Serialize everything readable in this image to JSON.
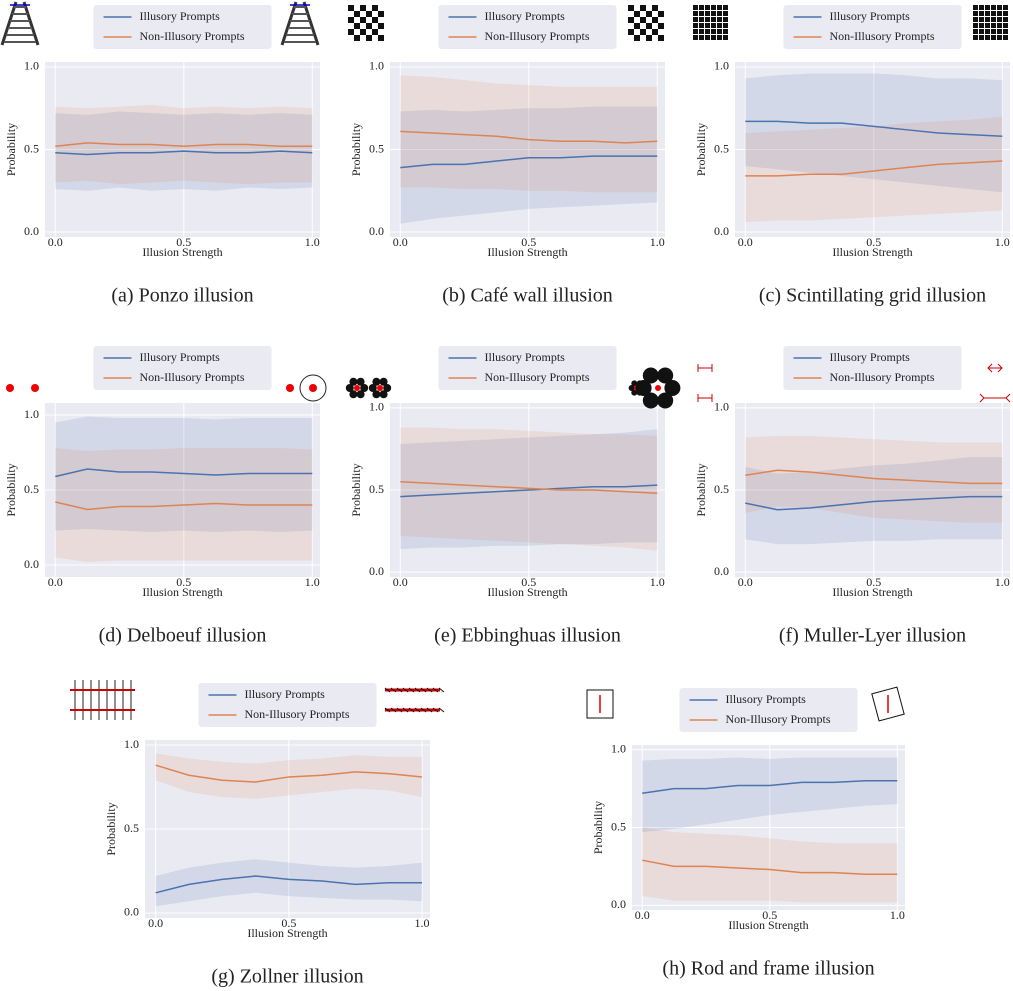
{
  "chart_data": [
    {
      "type": "line",
      "caption": "(a) Ponzo illusion",
      "xlabel": "Illusion Strength",
      "ylabel": "Probability",
      "x": [
        0,
        0.125,
        0.25,
        0.375,
        0.5,
        0.625,
        0.75,
        0.875,
        1.0
      ],
      "xlim": [
        -0.04,
        1.03
      ],
      "ylim": [
        -0.03,
        1.03
      ],
      "xticks": [
        {
          "value": 0,
          "label": "0.0"
        },
        {
          "value": 0.5,
          "label": "0.5"
        },
        {
          "value": 1.0,
          "label": "1.0"
        }
      ],
      "yticks": [
        {
          "value": 0,
          "label": "0.0"
        },
        {
          "value": 0.5,
          "label": "0.5"
        },
        {
          "value": 1.0,
          "label": "1.0"
        }
      ],
      "grid": true,
      "series": [
        {
          "name": "Illusory Prompts",
          "color": "#4c72b0",
          "values": [
            0.48,
            0.47,
            0.48,
            0.48,
            0.49,
            0.48,
            0.48,
            0.49,
            0.48
          ],
          "lower": [
            0.26,
            0.25,
            0.27,
            0.25,
            0.26,
            0.25,
            0.27,
            0.26,
            0.27
          ],
          "upper": [
            0.72,
            0.71,
            0.73,
            0.72,
            0.71,
            0.72,
            0.71,
            0.72,
            0.71
          ]
        },
        {
          "name": "Non-Illusory Prompts",
          "color": "#dd8452",
          "values": [
            0.52,
            0.54,
            0.53,
            0.53,
            0.52,
            0.53,
            0.53,
            0.52,
            0.52
          ],
          "lower": [
            0.3,
            0.31,
            0.29,
            0.3,
            0.31,
            0.3,
            0.29,
            0.3,
            0.3
          ],
          "upper": [
            0.76,
            0.75,
            0.76,
            0.77,
            0.75,
            0.76,
            0.75,
            0.76,
            0.75
          ]
        }
      ]
    },
    {
      "type": "line",
      "caption": "(b) Café wall illusion",
      "xlabel": "Illusion Strength",
      "ylabel": "Probability",
      "x": [
        0,
        0.125,
        0.25,
        0.375,
        0.5,
        0.625,
        0.75,
        0.875,
        1.0
      ],
      "xlim": [
        -0.04,
        1.03
      ],
      "ylim": [
        -0.03,
        1.03
      ],
      "xticks": [
        {
          "value": 0,
          "label": "0.0"
        },
        {
          "value": 0.5,
          "label": "0.5"
        },
        {
          "value": 1.0,
          "label": "1.0"
        }
      ],
      "yticks": [
        {
          "value": 0,
          "label": "0.0"
        },
        {
          "value": 0.5,
          "label": "0.5"
        },
        {
          "value": 1.0,
          "label": "1.0"
        }
      ],
      "grid": true,
      "series": [
        {
          "name": "Illusory Prompts",
          "color": "#4c72b0",
          "values": [
            0.39,
            0.41,
            0.41,
            0.43,
            0.45,
            0.45,
            0.46,
            0.46,
            0.46
          ],
          "lower": [
            0.05,
            0.08,
            0.1,
            0.12,
            0.14,
            0.15,
            0.16,
            0.17,
            0.18
          ],
          "upper": [
            0.73,
            0.74,
            0.73,
            0.74,
            0.75,
            0.75,
            0.76,
            0.76,
            0.76
          ]
        },
        {
          "name": "Non-Illusory Prompts",
          "color": "#dd8452",
          "values": [
            0.61,
            0.6,
            0.59,
            0.58,
            0.56,
            0.55,
            0.55,
            0.54,
            0.55
          ],
          "lower": [
            0.27,
            0.27,
            0.26,
            0.26,
            0.25,
            0.25,
            0.24,
            0.24,
            0.24
          ],
          "upper": [
            0.95,
            0.94,
            0.92,
            0.9,
            0.89,
            0.88,
            0.88,
            0.88,
            0.88
          ]
        }
      ]
    },
    {
      "type": "line",
      "caption": "(c) Scintillating grid illusion",
      "xlabel": "Illusion Strength",
      "ylabel": "Probability",
      "x": [
        0,
        0.125,
        0.25,
        0.375,
        0.5,
        0.625,
        0.75,
        0.875,
        1.0
      ],
      "xlim": [
        -0.04,
        1.03
      ],
      "ylim": [
        -0.03,
        1.03
      ],
      "xticks": [
        {
          "value": 0,
          "label": "0.0"
        },
        {
          "value": 0.5,
          "label": "0.5"
        },
        {
          "value": 1.0,
          "label": "1.0"
        }
      ],
      "yticks": [
        {
          "value": 0,
          "label": "0.0"
        },
        {
          "value": 0.5,
          "label": "0.5"
        },
        {
          "value": 1.0,
          "label": "1.0"
        }
      ],
      "grid": true,
      "series": [
        {
          "name": "Illusory Prompts",
          "color": "#4c72b0",
          "values": [
            0.67,
            0.67,
            0.66,
            0.66,
            0.64,
            0.62,
            0.6,
            0.59,
            0.58
          ],
          "lower": [
            0.4,
            0.38,
            0.36,
            0.34,
            0.32,
            0.3,
            0.28,
            0.26,
            0.24
          ],
          "upper": [
            0.93,
            0.95,
            0.96,
            0.96,
            0.96,
            0.95,
            0.93,
            0.93,
            0.92
          ]
        },
        {
          "name": "Non-Illusory Prompts",
          "color": "#dd8452",
          "values": [
            0.34,
            0.34,
            0.35,
            0.35,
            0.37,
            0.39,
            0.41,
            0.42,
            0.43
          ],
          "lower": [
            0.06,
            0.07,
            0.07,
            0.08,
            0.09,
            0.1,
            0.11,
            0.12,
            0.13
          ],
          "upper": [
            0.6,
            0.61,
            0.62,
            0.63,
            0.64,
            0.66,
            0.67,
            0.68,
            0.7
          ]
        }
      ]
    },
    {
      "type": "line",
      "caption": "(d) Delboeuf illusion",
      "xlabel": "Illusion Strength",
      "ylabel": "Probability",
      "x": [
        0,
        0.125,
        0.25,
        0.375,
        0.5,
        0.625,
        0.75,
        0.875,
        1.0
      ],
      "xlim": [
        -0.04,
        1.03
      ],
      "ylim": [
        -0.08,
        1.08
      ],
      "xticks": [
        {
          "value": 0,
          "label": "0.0"
        },
        {
          "value": 0.5,
          "label": "0.5"
        },
        {
          "value": 1.0,
          "label": "1.0"
        }
      ],
      "yticks": [
        {
          "value": 0,
          "label": "0.0"
        },
        {
          "value": 0.5,
          "label": "0.5"
        },
        {
          "value": 1.0,
          "label": "1.0"
        }
      ],
      "grid": true,
      "series": [
        {
          "name": "Illusory Prompts",
          "color": "#4c72b0",
          "values": [
            0.59,
            0.64,
            0.62,
            0.62,
            0.61,
            0.6,
            0.61,
            0.61,
            0.61
          ],
          "lower": [
            0.23,
            0.24,
            0.23,
            0.22,
            0.23,
            0.22,
            0.23,
            0.22,
            0.23
          ],
          "upper": [
            0.95,
            0.99,
            0.98,
            0.98,
            0.98,
            0.97,
            0.98,
            0.98,
            0.98
          ]
        },
        {
          "name": "Non-Illusory Prompts",
          "color": "#dd8452",
          "values": [
            0.42,
            0.37,
            0.39,
            0.39,
            0.4,
            0.41,
            0.4,
            0.4,
            0.4
          ],
          "lower": [
            0.05,
            0.02,
            0.03,
            0.03,
            0.03,
            0.03,
            0.03,
            0.03,
            0.03
          ],
          "upper": [
            0.78,
            0.76,
            0.77,
            0.77,
            0.78,
            0.78,
            0.78,
            0.78,
            0.77
          ]
        }
      ]
    },
    {
      "type": "line",
      "caption": "(e) Ebbinghuas illusion",
      "xlabel": "Illusion Strength",
      "ylabel": "Probability",
      "x": [
        0,
        0.125,
        0.25,
        0.375,
        0.5,
        0.625,
        0.75,
        0.875,
        1.0
      ],
      "xlim": [
        -0.04,
        1.03
      ],
      "ylim": [
        -0.03,
        1.03
      ],
      "xticks": [
        {
          "value": 0,
          "label": "0.0"
        },
        {
          "value": 0.5,
          "label": "0.5"
        },
        {
          "value": 1.0,
          "label": "1.0"
        }
      ],
      "yticks": [
        {
          "value": 0,
          "label": "0.0"
        },
        {
          "value": 0.5,
          "label": "0.5"
        },
        {
          "value": 1.0,
          "label": "1.0"
        }
      ],
      "grid": true,
      "series": [
        {
          "name": "Illusory Prompts",
          "color": "#4c72b0",
          "values": [
            0.46,
            0.47,
            0.48,
            0.49,
            0.5,
            0.51,
            0.52,
            0.52,
            0.53
          ],
          "lower": [
            0.14,
            0.15,
            0.15,
            0.16,
            0.16,
            0.17,
            0.17,
            0.18,
            0.18
          ],
          "upper": [
            0.78,
            0.79,
            0.8,
            0.81,
            0.82,
            0.83,
            0.84,
            0.85,
            0.87
          ]
        },
        {
          "name": "Non-Illusory Prompts",
          "color": "#dd8452",
          "values": [
            0.55,
            0.54,
            0.53,
            0.52,
            0.51,
            0.5,
            0.5,
            0.49,
            0.48
          ],
          "lower": [
            0.22,
            0.21,
            0.2,
            0.19,
            0.18,
            0.17,
            0.16,
            0.15,
            0.13
          ],
          "upper": [
            0.88,
            0.88,
            0.87,
            0.87,
            0.86,
            0.85,
            0.84,
            0.84,
            0.83
          ]
        }
      ]
    },
    {
      "type": "line",
      "caption": "(f) Muller-Lyer illusion",
      "xlabel": "Illusion Strength",
      "ylabel": "Probability",
      "x": [
        0,
        0.125,
        0.25,
        0.375,
        0.5,
        0.625,
        0.75,
        0.875,
        1.0
      ],
      "xlim": [
        -0.04,
        1.03
      ],
      "ylim": [
        -0.03,
        1.03
      ],
      "xticks": [
        {
          "value": 0,
          "label": "0.0"
        },
        {
          "value": 0.5,
          "label": "0.5"
        },
        {
          "value": 1.0,
          "label": "1.0"
        }
      ],
      "yticks": [
        {
          "value": 0,
          "label": "0.0"
        },
        {
          "value": 0.5,
          "label": "0.5"
        },
        {
          "value": 1.0,
          "label": "1.0"
        }
      ],
      "grid": true,
      "series": [
        {
          "name": "Illusory Prompts",
          "color": "#4c72b0",
          "values": [
            0.42,
            0.38,
            0.39,
            0.41,
            0.43,
            0.44,
            0.45,
            0.46,
            0.46
          ],
          "lower": [
            0.2,
            0.17,
            0.17,
            0.18,
            0.19,
            0.19,
            0.2,
            0.2,
            0.2
          ],
          "upper": [
            0.64,
            0.6,
            0.61,
            0.63,
            0.65,
            0.66,
            0.68,
            0.7,
            0.7
          ]
        },
        {
          "name": "Non-Illusory Prompts",
          "color": "#dd8452",
          "values": [
            0.59,
            0.62,
            0.61,
            0.59,
            0.57,
            0.56,
            0.55,
            0.54,
            0.54
          ],
          "lower": [
            0.36,
            0.4,
            0.39,
            0.36,
            0.33,
            0.32,
            0.31,
            0.3,
            0.3
          ],
          "upper": [
            0.82,
            0.83,
            0.83,
            0.82,
            0.81,
            0.8,
            0.79,
            0.79,
            0.79
          ]
        }
      ]
    },
    {
      "type": "line",
      "caption": "(g) Zollner illusion",
      "xlabel": "Illusion Strength",
      "ylabel": "Probability",
      "x": [
        0,
        0.125,
        0.25,
        0.375,
        0.5,
        0.625,
        0.75,
        0.875,
        1.0
      ],
      "xlim": [
        -0.04,
        1.03
      ],
      "ylim": [
        -0.03,
        1.03
      ],
      "xticks": [
        {
          "value": 0,
          "label": "0.0"
        },
        {
          "value": 0.5,
          "label": "0.5"
        },
        {
          "value": 1.0,
          "label": "1.0"
        }
      ],
      "yticks": [
        {
          "value": 0,
          "label": "0.0"
        },
        {
          "value": 0.5,
          "label": "0.5"
        },
        {
          "value": 1.0,
          "label": "1.0"
        }
      ],
      "grid": true,
      "series": [
        {
          "name": "Illusory Prompts",
          "color": "#4c72b0",
          "values": [
            0.12,
            0.17,
            0.2,
            0.22,
            0.2,
            0.19,
            0.17,
            0.18,
            0.18
          ],
          "lower": [
            0.04,
            0.07,
            0.1,
            0.12,
            0.1,
            0.09,
            0.08,
            0.08,
            0.07
          ],
          "upper": [
            0.22,
            0.27,
            0.3,
            0.32,
            0.3,
            0.28,
            0.27,
            0.28,
            0.3
          ]
        },
        {
          "name": "Non-Illusory Prompts",
          "color": "#dd8452",
          "values": [
            0.88,
            0.82,
            0.79,
            0.78,
            0.81,
            0.82,
            0.84,
            0.83,
            0.81
          ],
          "lower": [
            0.79,
            0.72,
            0.69,
            0.68,
            0.7,
            0.72,
            0.74,
            0.73,
            0.69
          ],
          "upper": [
            0.95,
            0.92,
            0.9,
            0.89,
            0.91,
            0.92,
            0.94,
            0.93,
            0.93
          ]
        }
      ]
    },
    {
      "type": "line",
      "caption": "(h) Rod and frame illusion",
      "xlabel": "Illusion Strength",
      "ylabel": "Probability",
      "x": [
        0,
        0.125,
        0.25,
        0.375,
        0.5,
        0.625,
        0.75,
        0.875,
        1.0
      ],
      "xlim": [
        -0.04,
        1.03
      ],
      "ylim": [
        -0.03,
        1.03
      ],
      "xticks": [
        {
          "value": 0,
          "label": "0.0"
        },
        {
          "value": 0.5,
          "label": "0.5"
        },
        {
          "value": 1.0,
          "label": "1.0"
        }
      ],
      "yticks": [
        {
          "value": 0,
          "label": "0.0"
        },
        {
          "value": 0.5,
          "label": "0.5"
        },
        {
          "value": 1.0,
          "label": "1.0"
        }
      ],
      "grid": true,
      "series": [
        {
          "name": "Illusory Prompts",
          "color": "#4c72b0",
          "values": [
            0.72,
            0.75,
            0.75,
            0.77,
            0.77,
            0.79,
            0.79,
            0.8,
            0.8
          ],
          "lower": [
            0.47,
            0.49,
            0.52,
            0.55,
            0.58,
            0.6,
            0.62,
            0.64,
            0.65
          ],
          "upper": [
            0.93,
            0.94,
            0.94,
            0.95,
            0.94,
            0.95,
            0.95,
            0.95,
            0.95
          ]
        },
        {
          "name": "Non-Illusory Prompts",
          "color": "#dd8452",
          "values": [
            0.29,
            0.25,
            0.25,
            0.24,
            0.23,
            0.21,
            0.21,
            0.2,
            0.2
          ],
          "lower": [
            0.06,
            0.03,
            0.03,
            0.03,
            0.03,
            0.02,
            0.02,
            0.02,
            0.02
          ],
          "upper": [
            0.5,
            0.47,
            0.46,
            0.45,
            0.43,
            0.41,
            0.4,
            0.4,
            0.4
          ]
        }
      ]
    }
  ]
}
